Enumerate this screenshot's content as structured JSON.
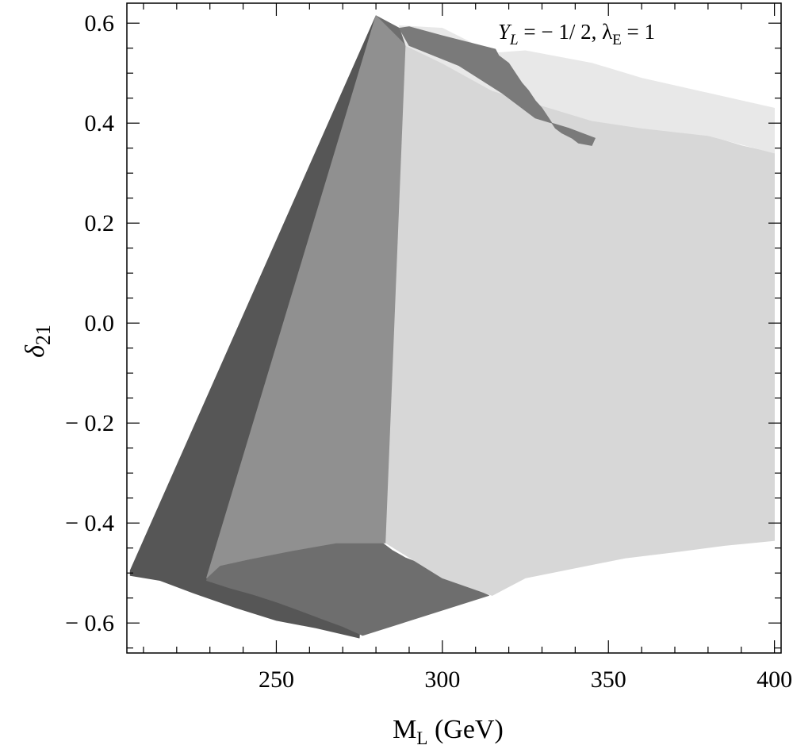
{
  "chart_data": {
    "type": "area",
    "title": "",
    "xlabel": {
      "main": "M",
      "sub": "L",
      "suffix": " (GeV)"
    },
    "ylabel": {
      "main": "δ",
      "sub": "21"
    },
    "xlim": [
      205,
      402
    ],
    "ylim": [
      -0.66,
      0.64
    ],
    "x_ticks": [
      250,
      300,
      350,
      400
    ],
    "y_ticks": [
      {
        "v": 0.6,
        "label": "0.6"
      },
      {
        "v": 0.4,
        "label": "0.4"
      },
      {
        "v": 0.2,
        "label": "0.2"
      },
      {
        "v": 0.0,
        "label": "0.0"
      },
      {
        "v": -0.2,
        "label": "− 0.2"
      },
      {
        "v": -0.4,
        "label": "− 0.4"
      },
      {
        "v": -0.6,
        "label": "− 0.6"
      }
    ],
    "annotation": {
      "y_sym": "Y",
      "y_sub": "L",
      "mid": " = − 1/ 2, ",
      "lam_sym": "λ",
      "lam_sub": "E",
      "end": " = 1"
    },
    "grid": false,
    "regions": [
      {
        "name": "dark",
        "color": "#565656",
        "points": [
          [
            280,
            0.615
          ],
          [
            287,
            0.59
          ],
          [
            275,
            -0.63
          ],
          [
            262,
            -0.61
          ],
          [
            250,
            -0.595
          ],
          [
            238,
            -0.57
          ],
          [
            225,
            -0.54
          ],
          [
            215,
            -0.515
          ],
          [
            206,
            -0.505
          ],
          [
            206,
            -0.495
          ]
        ]
      },
      {
        "name": "mid-dark",
        "color": "#6e6e6e",
        "points": [
          [
            280,
            0.615
          ],
          [
            287,
            0.59
          ],
          [
            290,
            0.555
          ],
          [
            282,
            -0.44
          ],
          [
            285,
            -0.455
          ],
          [
            289,
            -0.47
          ],
          [
            293,
            -0.48
          ],
          [
            297,
            -0.495
          ],
          [
            301,
            -0.51
          ],
          [
            305,
            -0.52
          ],
          [
            309,
            -0.53
          ],
          [
            314,
            -0.545
          ],
          [
            276,
            -0.625
          ],
          [
            270,
            -0.607
          ],
          [
            263,
            -0.59
          ],
          [
            257,
            -0.575
          ],
          [
            250,
            -0.558
          ],
          [
            243,
            -0.543
          ],
          [
            236,
            -0.53
          ],
          [
            229,
            -0.515
          ]
        ]
      },
      {
        "name": "medium",
        "color": "#909090",
        "points": [
          [
            280,
            0.615
          ],
          [
            289,
            0.555
          ],
          [
            283,
            -0.44
          ],
          [
            268,
            -0.44
          ],
          [
            255,
            -0.455
          ],
          [
            242,
            -0.472
          ],
          [
            233,
            -0.485
          ],
          [
            229,
            -0.51
          ]
        ]
      },
      {
        "name": "light",
        "color": "#d7d7d7",
        "points": [
          [
            289,
            0.555
          ],
          [
            300,
            0.52
          ],
          [
            315,
            0.465
          ],
          [
            330,
            0.435
          ],
          [
            345,
            0.405
          ],
          [
            360,
            0.39
          ],
          [
            370,
            0.385
          ],
          [
            380,
            0.375
          ],
          [
            390,
            0.355
          ],
          [
            400,
            0.34
          ],
          [
            400,
            -0.435
          ],
          [
            385,
            -0.445
          ],
          [
            370,
            -0.458
          ],
          [
            355,
            -0.47
          ],
          [
            340,
            -0.49
          ],
          [
            325,
            -0.51
          ],
          [
            315,
            -0.545
          ],
          [
            300,
            -0.51
          ],
          [
            283,
            -0.44
          ]
        ]
      },
      {
        "name": "very-light",
        "color": "#e8e8e8",
        "points": [
          [
            287,
            0.595
          ],
          [
            300,
            0.59
          ],
          [
            315,
            0.54
          ],
          [
            325,
            0.545
          ],
          [
            345,
            0.52
          ],
          [
            360,
            0.49
          ],
          [
            380,
            0.46
          ],
          [
            400,
            0.43
          ],
          [
            400,
            0.34
          ],
          [
            380,
            0.375
          ],
          [
            360,
            0.39
          ],
          [
            345,
            0.405
          ],
          [
            330,
            0.435
          ],
          [
            315,
            0.465
          ],
          [
            300,
            0.52
          ],
          [
            289,
            0.555
          ]
        ]
      },
      {
        "name": "upper-band",
        "color": "#7a7a7a",
        "points": [
          [
            287,
            0.59
          ],
          [
            290,
            0.555
          ],
          [
            305,
            0.515
          ],
          [
            318,
            0.46
          ],
          [
            328,
            0.41
          ],
          [
            338,
            0.39
          ],
          [
            346,
            0.37
          ],
          [
            345,
            0.355
          ],
          [
            341,
            0.36
          ],
          [
            339,
            0.37
          ],
          [
            336,
            0.38
          ],
          [
            334,
            0.39
          ],
          [
            332,
            0.41
          ],
          [
            330,
            0.43
          ],
          [
            328,
            0.445
          ],
          [
            326,
            0.465
          ],
          [
            324,
            0.48
          ],
          [
            322,
            0.5
          ],
          [
            320,
            0.52
          ],
          [
            317,
            0.535
          ],
          [
            316,
            0.548
          ],
          [
            300,
            0.575
          ],
          [
            290,
            0.593
          ]
        ]
      }
    ]
  }
}
